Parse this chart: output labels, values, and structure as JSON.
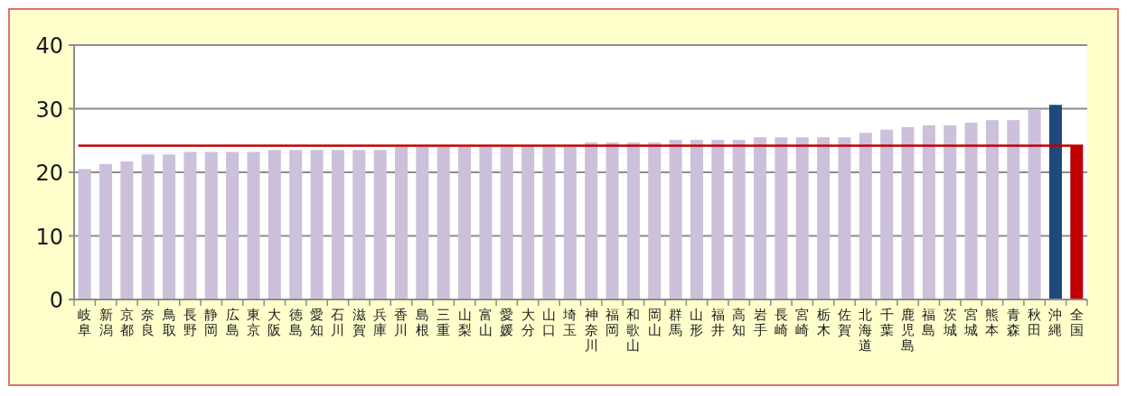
{
  "chart_data": {
    "type": "bar",
    "categories": [
      "岐阜",
      "新潟",
      "京都",
      "奈良",
      "鳥取",
      "長野",
      "静岡",
      "広島",
      "東京",
      "大阪",
      "徳島",
      "愛知",
      "石川",
      "滋賀",
      "兵庫",
      "香川",
      "島根",
      "三重",
      "山梨",
      "富山",
      "愛媛",
      "大分",
      "山口",
      "埼玉",
      "神奈川",
      "福岡",
      "和歌山",
      "岡山",
      "群馬",
      "山形",
      "福井",
      "高知",
      "岩手",
      "長崎",
      "宮崎",
      "栃木",
      "佐賀",
      "北海道",
      "千葉",
      "鹿児島",
      "福島",
      "茨城",
      "宮城",
      "熊本",
      "青森",
      "秋田",
      "沖縄",
      "全国"
    ],
    "values": [
      20.5,
      21.3,
      21.7,
      22.8,
      22.8,
      23.2,
      23.2,
      23.2,
      23.2,
      23.5,
      23.5,
      23.5,
      23.5,
      23.5,
      23.5,
      24.0,
      24.0,
      24.0,
      24.0,
      24.0,
      24.0,
      24.0,
      24.0,
      24.0,
      24.7,
      24.7,
      24.7,
      24.7,
      25.1,
      25.1,
      25.1,
      25.1,
      25.5,
      25.5,
      25.5,
      25.5,
      25.5,
      26.2,
      26.7,
      27.1,
      27.4,
      27.4,
      27.8,
      28.2,
      28.2,
      29.9,
      30.6,
      24.2
    ],
    "colors": [
      "#ccc0da",
      "#ccc0da",
      "#ccc0da",
      "#ccc0da",
      "#ccc0da",
      "#ccc0da",
      "#ccc0da",
      "#ccc0da",
      "#ccc0da",
      "#ccc0da",
      "#ccc0da",
      "#ccc0da",
      "#ccc0da",
      "#ccc0da",
      "#ccc0da",
      "#ccc0da",
      "#ccc0da",
      "#ccc0da",
      "#ccc0da",
      "#ccc0da",
      "#ccc0da",
      "#ccc0da",
      "#ccc0da",
      "#ccc0da",
      "#ccc0da",
      "#ccc0da",
      "#ccc0da",
      "#ccc0da",
      "#ccc0da",
      "#ccc0da",
      "#ccc0da",
      "#ccc0da",
      "#ccc0da",
      "#ccc0da",
      "#ccc0da",
      "#ccc0da",
      "#ccc0da",
      "#ccc0da",
      "#ccc0da",
      "#ccc0da",
      "#ccc0da",
      "#ccc0da",
      "#ccc0da",
      "#ccc0da",
      "#ccc0da",
      "#ccc0da",
      "#1f497d",
      "#c00000"
    ],
    "ylim": [
      0,
      40
    ],
    "yticks": [
      0,
      10,
      20,
      30,
      40
    ],
    "grid": "y",
    "ref_lines": [
      {
        "axis": "y",
        "value": 24.2,
        "color": "#c00000"
      }
    ]
  }
}
